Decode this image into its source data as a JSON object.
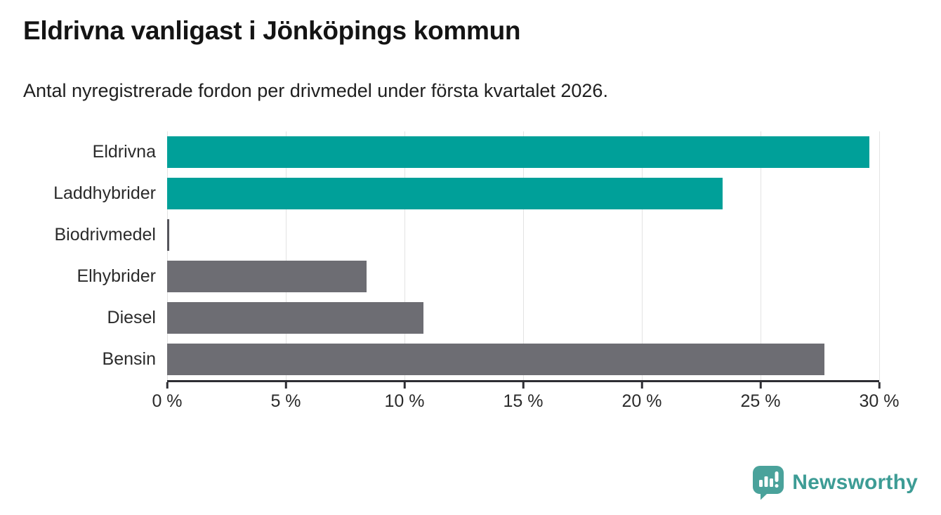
{
  "title": "Eldrivna vanligast i Jönköpings kommun",
  "subtitle": "Antal nyregistrerade fordon per drivmedel under första kvartalet 2026.",
  "chart_data": {
    "type": "bar",
    "orientation": "horizontal",
    "title": "Eldrivna vanligast i Jönköpings kommun",
    "subtitle": "Antal nyregistrerade fordon per drivmedel under första kvartalet 2026.",
    "categories": [
      "Eldrivna",
      "Laddhybrider",
      "Biodrivmedel",
      "Elhybrider",
      "Diesel",
      "Bensin"
    ],
    "values": [
      29.6,
      23.4,
      0.1,
      8.4,
      10.8,
      27.7
    ],
    "unit": "%",
    "xlabel": "",
    "ylabel": "",
    "xlim": [
      0,
      30
    ],
    "grid": true,
    "legend": "none",
    "x_ticks": [
      {
        "label": "0 %",
        "value": 0
      },
      {
        "label": "5 %",
        "value": 5
      },
      {
        "label": "10 %",
        "value": 10
      },
      {
        "label": "15 %",
        "value": 15
      },
      {
        "label": "20 %",
        "value": 20
      },
      {
        "label": "25 %",
        "value": 25
      },
      {
        "label": "30 %",
        "value": 30
      }
    ],
    "bar_colors": [
      "#00a099",
      "#00a099",
      "#55555c",
      "#6d6d73",
      "#6d6d73",
      "#6d6d73"
    ]
  },
  "colors": {
    "highlight_teal": "#00a099",
    "neutral_gray": "#6d6d73",
    "axis": "#2e2e33",
    "gridline": "#e3e3e3",
    "text": "#2b2b2b",
    "background": "#ffffff"
  },
  "footer": {
    "brand": "Newsworthy",
    "logo_icon": "newsworthy-speech-bubble-chart-icon",
    "brand_color": "#3d9c95",
    "logo_fill": "#4aa29b"
  }
}
